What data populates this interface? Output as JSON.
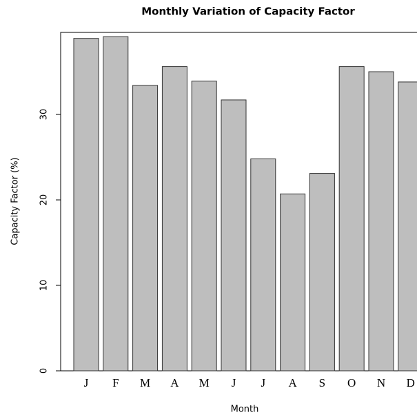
{
  "chart_data": {
    "type": "bar",
    "title": "Monthly Variation of Capacity Factor",
    "x_label": "Month",
    "y_label": "Capacity Factor (%)",
    "categories": [
      "J",
      "F",
      "M",
      "A",
      "M",
      "J",
      "J",
      "A",
      "S",
      "O",
      "N",
      "D"
    ],
    "values": [
      38.9,
      39.1,
      33.4,
      35.6,
      33.9,
      31.7,
      24.8,
      20.7,
      23.1,
      35.6,
      35.0,
      33.8
    ],
    "color": "#bebebe",
    "ylim": [
      0,
      39.6
    ],
    "yticks": [
      0,
      10,
      20,
      30
    ],
    "grid": false
  }
}
